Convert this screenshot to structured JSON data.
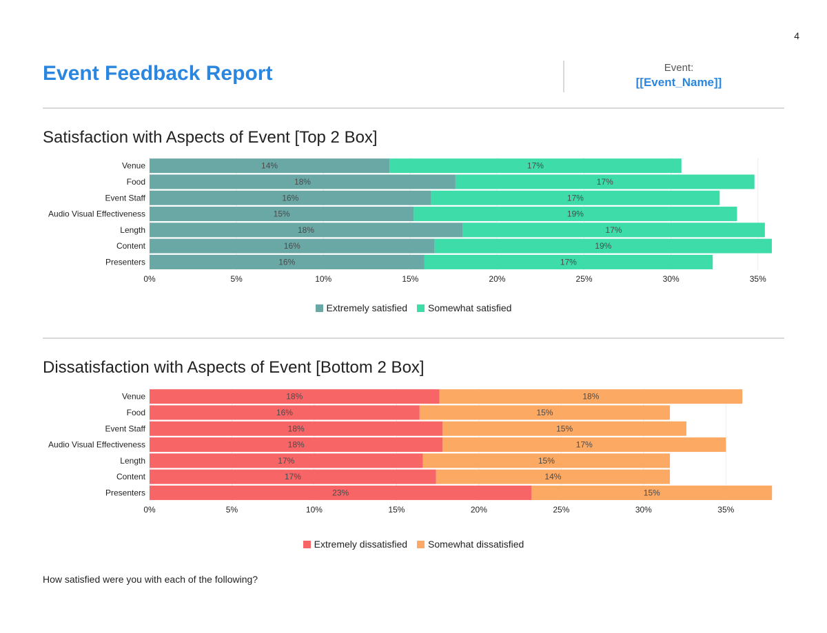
{
  "page_number": "4",
  "header": {
    "title": "Event Feedback Report",
    "event_label": "Event:",
    "event_name": "[[Event_Name]]"
  },
  "colors": {
    "accent": "#2a86de",
    "extremely_satisfied": "#6aa8a6",
    "somewhat_satisfied": "#3ddca8",
    "extremely_dissatisfied": "#f76567",
    "somewhat_dissatisfied": "#fca964"
  },
  "footnote": "How satisfied were you with each of the following?",
  "chart_data": [
    {
      "type": "bar",
      "orientation": "horizontal",
      "stacked": true,
      "title": "Satisfaction with Aspects of Event [Top 2 Box]",
      "categories": [
        "Venue",
        "Food",
        "Event Staff",
        "Audio Visual Effectiveness",
        "Length",
        "Content",
        "Presenters"
      ],
      "series": [
        {
          "name": "Extremely satisfied",
          "color": "#6aa8a6",
          "values": [
            13.8,
            17.6,
            16.2,
            15.2,
            18.0,
            16.4,
            15.8
          ]
        },
        {
          "name": "Somewhat satisfied",
          "color": "#3ddca8",
          "values": [
            16.8,
            17.2,
            16.6,
            18.6,
            17.4,
            19.4,
            16.6
          ]
        }
      ],
      "data_labels": [
        [
          "14%",
          "18%",
          "16%",
          "15%",
          "18%",
          "16%",
          "16%"
        ],
        [
          "17%",
          "17%",
          "17%",
          "19%",
          "17%",
          "19%",
          "17%"
        ]
      ],
      "xlim": [
        0,
        36
      ],
      "xticks": [
        0,
        5,
        10,
        15,
        20,
        25,
        30,
        35
      ],
      "xtick_labels": [
        "0%",
        "5%",
        "10%",
        "15%",
        "20%",
        "25%",
        "30%",
        "35%"
      ],
      "grid": true,
      "legend_position": "bottom"
    },
    {
      "type": "bar",
      "orientation": "horizontal",
      "stacked": true,
      "title": "Dissatisfaction with Aspects of Event [Bottom 2 Box]",
      "categories": [
        "Venue",
        "Food",
        "Event Staff",
        "Audio Visual Effectiveness",
        "Length",
        "Content",
        "Presenters"
      ],
      "series": [
        {
          "name": "Extremely dissatisfied",
          "color": "#f76567",
          "values": [
            17.6,
            16.4,
            17.8,
            17.8,
            16.6,
            17.4,
            23.2
          ]
        },
        {
          "name": "Somewhat dissatisfied",
          "color": "#fca964",
          "values": [
            18.4,
            15.2,
            14.8,
            17.2,
            15.0,
            14.2,
            14.6
          ]
        }
      ],
      "data_labels": [
        [
          "18%",
          "16%",
          "18%",
          "18%",
          "17%",
          "17%",
          "23%"
        ],
        [
          "18%",
          "15%",
          "15%",
          "17%",
          "15%",
          "14%",
          "15%"
        ]
      ],
      "xlim": [
        0,
        38
      ],
      "xticks": [
        0,
        5,
        10,
        15,
        20,
        25,
        30,
        35
      ],
      "xtick_labels": [
        "0%",
        "5%",
        "10%",
        "15%",
        "20%",
        "25%",
        "30%",
        "35%"
      ],
      "grid": true,
      "legend_position": "bottom"
    }
  ]
}
